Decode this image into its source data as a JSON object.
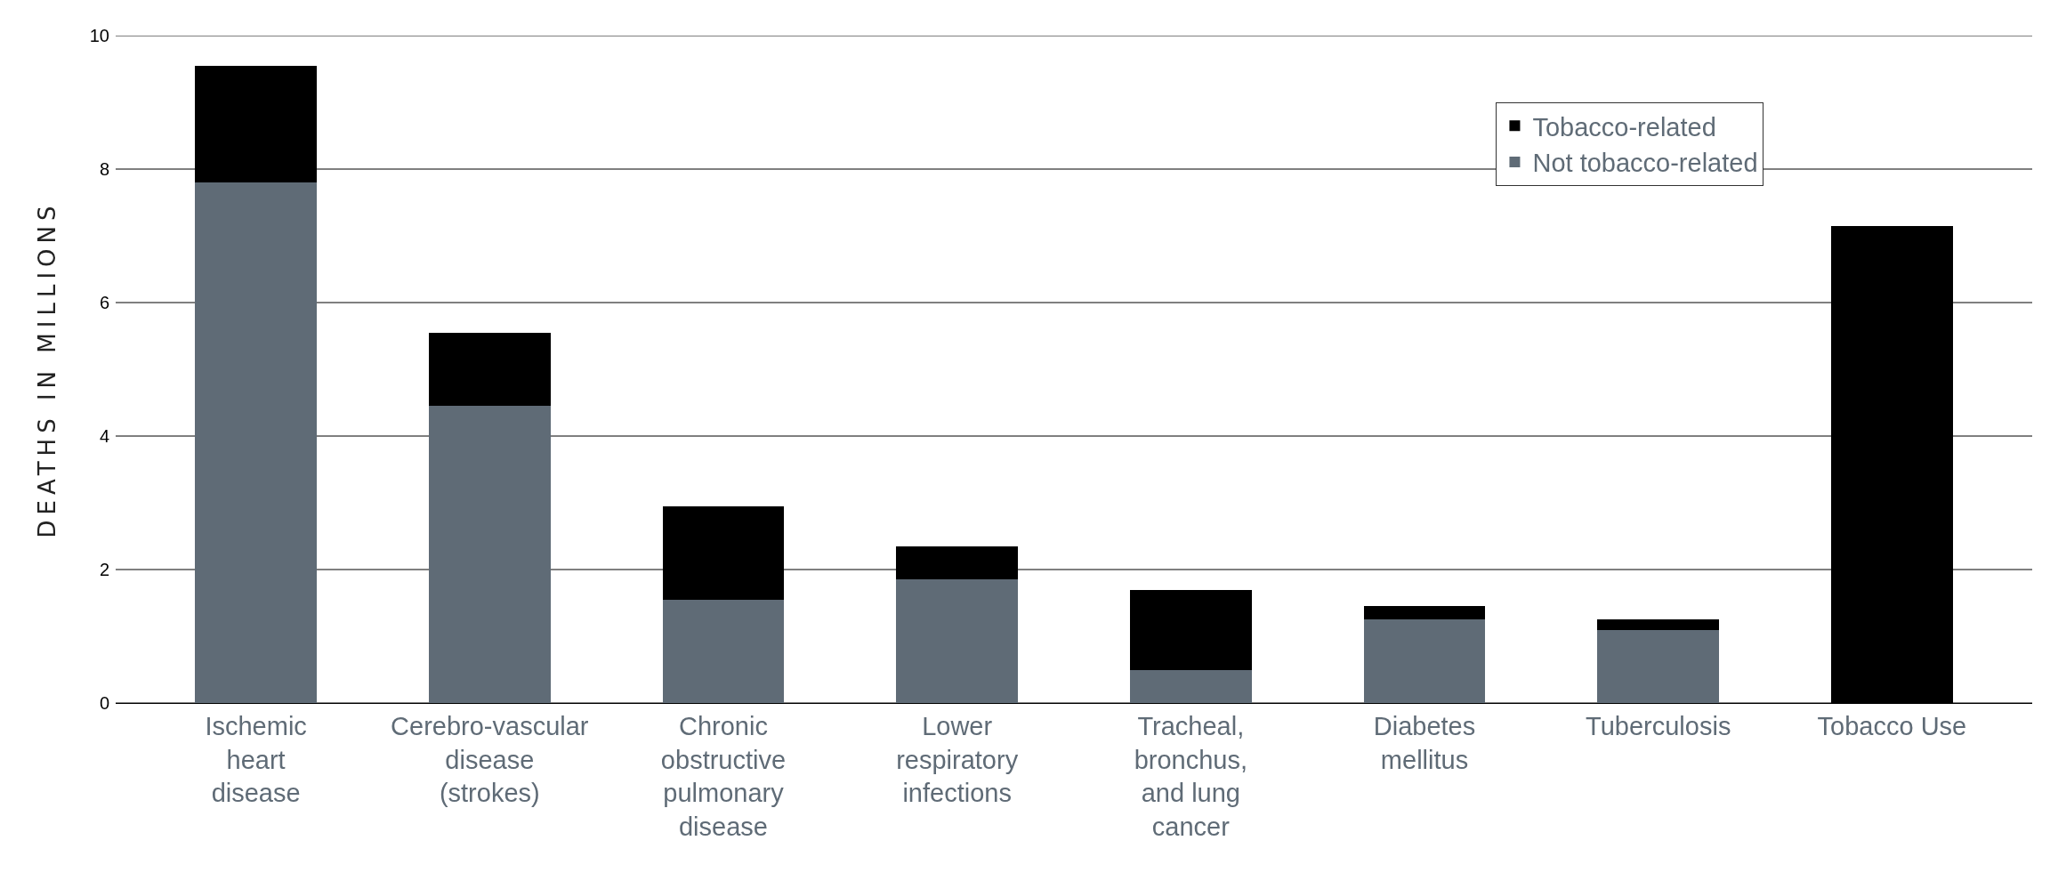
{
  "chart_data": {
    "type": "bar",
    "stacked": true,
    "ylabel": "DEATHS IN MILLIONS",
    "categories": [
      "Ischemic heart disease",
      "Cerebro-vascular disease (strokes)",
      "Chronic obstructive pulmonary disease",
      "Lower respiratory infections",
      "Tracheal, bronchus, and lung cancer",
      "Diabetes mellitus",
      "Tuberculosis",
      "Tobacco Use"
    ],
    "series": [
      {
        "name": "Not tobacco-related",
        "color": "#5f6b76",
        "values": [
          7.8,
          4.45,
          1.55,
          1.85,
          0.5,
          1.25,
          1.1,
          0
        ]
      },
      {
        "name": "Tobacco-related",
        "color": "#000000",
        "values": [
          1.75,
          1.1,
          1.4,
          0.5,
          1.2,
          0.2,
          0.15,
          7.15
        ]
      }
    ],
    "ylim": [
      0,
      10
    ],
    "yticks": [
      0,
      2,
      4,
      6,
      8,
      10
    ],
    "grid": "y",
    "legend": "top right"
  }
}
